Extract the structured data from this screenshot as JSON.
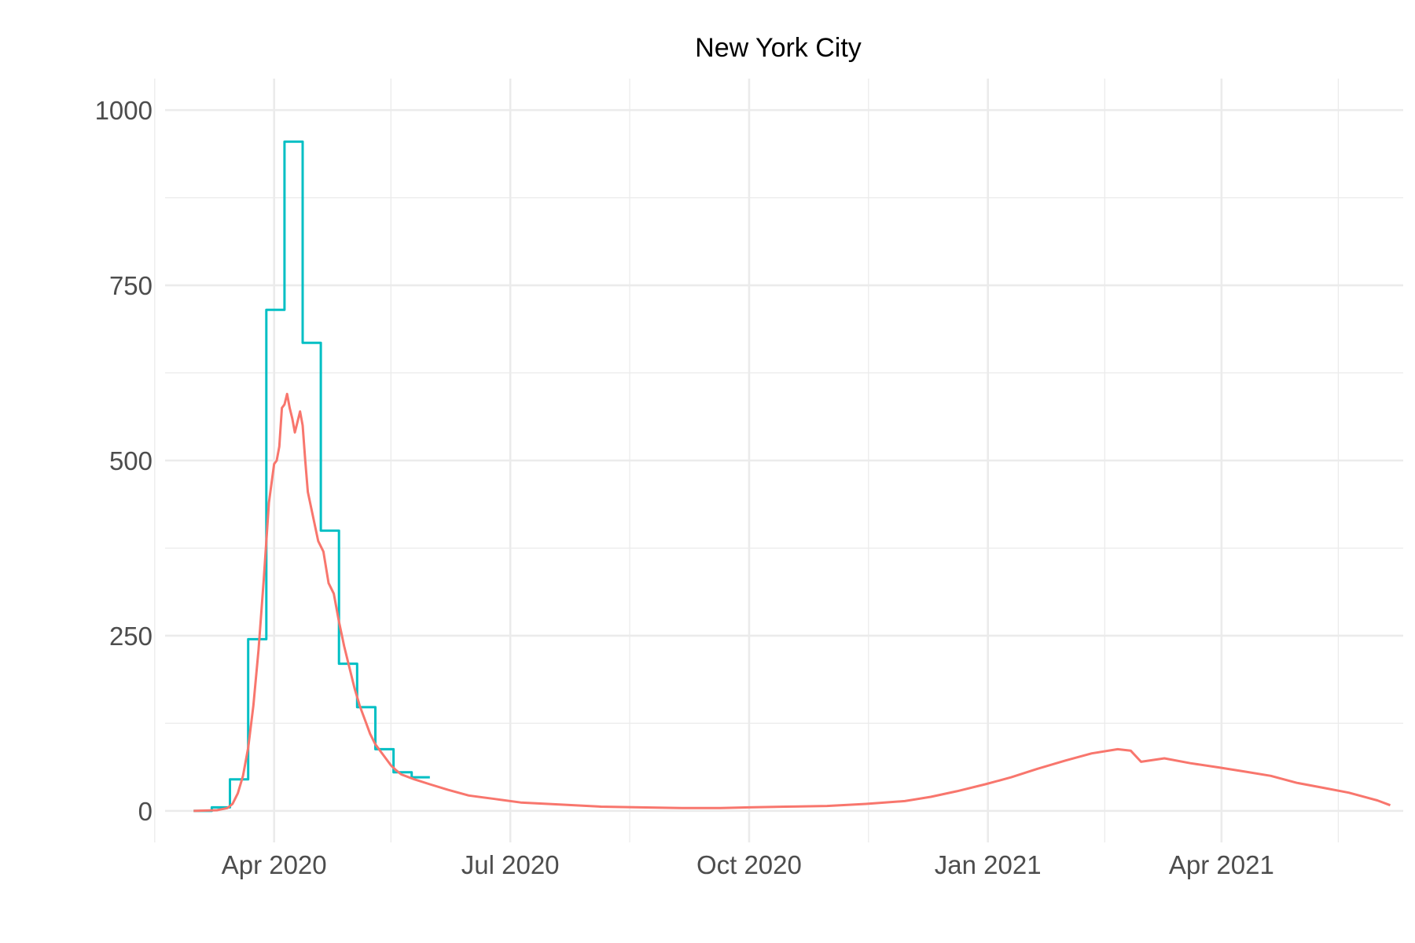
{
  "chart_data": {
    "type": "line",
    "title": "New York City",
    "xlabel": "",
    "ylabel": "",
    "x_range": [
      "2020-02-19",
      "2021-06-10"
    ],
    "ylim": [
      -45,
      1045
    ],
    "grid": true,
    "legend": "none",
    "x_ticks": [
      {
        "date": "2020-04-01",
        "label": "Apr 2020"
      },
      {
        "date": "2020-07-01",
        "label": "Jul 2020"
      },
      {
        "date": "2020-10-01",
        "label": "Oct 2020"
      },
      {
        "date": "2021-01-01",
        "label": "Jan 2021"
      },
      {
        "date": "2021-04-01",
        "label": "Apr 2021"
      }
    ],
    "x_minor_ticks": [
      "2020-02-15",
      "2020-05-16",
      "2020-08-16",
      "2020-11-16",
      "2021-02-15",
      "2021-05-16"
    ],
    "y_ticks": [
      {
        "value": 0,
        "label": "0"
      },
      {
        "value": 250,
        "label": "250"
      },
      {
        "value": 500,
        "label": "500"
      },
      {
        "value": 750,
        "label": "750"
      },
      {
        "value": 1000,
        "label": "1000"
      }
    ],
    "y_minor_ticks": [
      125,
      375,
      625,
      875
    ],
    "series": [
      {
        "color": "#00BFC4",
        "step": true,
        "points": [
          [
            "2020-03-01",
            0
          ],
          [
            "2020-03-08",
            5
          ],
          [
            "2020-03-15",
            45
          ],
          [
            "2020-03-22",
            245
          ],
          [
            "2020-03-29",
            715
          ],
          [
            "2020-04-05",
            955
          ],
          [
            "2020-04-12",
            668
          ],
          [
            "2020-04-19",
            400
          ],
          [
            "2020-04-26",
            210
          ],
          [
            "2020-05-03",
            148
          ],
          [
            "2020-05-10",
            88
          ],
          [
            "2020-05-17",
            55
          ],
          [
            "2020-05-24",
            48
          ]
        ]
      },
      {
        "color": "#F8766D",
        "step": false,
        "points": [
          [
            "2020-03-01",
            0
          ],
          [
            "2020-03-10",
            1
          ],
          [
            "2020-03-14",
            4
          ],
          [
            "2020-03-16",
            10
          ],
          [
            "2020-03-18",
            25
          ],
          [
            "2020-03-20",
            50
          ],
          [
            "2020-03-22",
            90
          ],
          [
            "2020-03-24",
            150
          ],
          [
            "2020-03-26",
            230
          ],
          [
            "2020-03-28",
            330
          ],
          [
            "2020-03-30",
            440
          ],
          [
            "2020-04-01",
            495
          ],
          [
            "2020-04-02",
            500
          ],
          [
            "2020-04-03",
            520
          ],
          [
            "2020-04-04",
            575
          ],
          [
            "2020-04-05",
            580
          ],
          [
            "2020-04-06",
            595
          ],
          [
            "2020-04-07",
            575
          ],
          [
            "2020-04-08",
            560
          ],
          [
            "2020-04-09",
            540
          ],
          [
            "2020-04-10",
            555
          ],
          [
            "2020-04-11",
            570
          ],
          [
            "2020-04-12",
            550
          ],
          [
            "2020-04-13",
            500
          ],
          [
            "2020-04-14",
            455
          ],
          [
            "2020-04-16",
            420
          ],
          [
            "2020-04-18",
            385
          ],
          [
            "2020-04-20",
            370
          ],
          [
            "2020-04-22",
            325
          ],
          [
            "2020-04-24",
            310
          ],
          [
            "2020-04-26",
            270
          ],
          [
            "2020-04-28",
            235
          ],
          [
            "2020-04-30",
            205
          ],
          [
            "2020-05-02",
            175
          ],
          [
            "2020-05-04",
            150
          ],
          [
            "2020-05-06",
            130
          ],
          [
            "2020-05-08",
            110
          ],
          [
            "2020-05-10",
            95
          ],
          [
            "2020-05-12",
            85
          ],
          [
            "2020-05-14",
            75
          ],
          [
            "2020-05-16",
            65
          ],
          [
            "2020-05-18",
            58
          ],
          [
            "2020-05-20",
            52
          ],
          [
            "2020-05-25",
            45
          ],
          [
            "2020-05-31",
            38
          ],
          [
            "2020-06-07",
            30
          ],
          [
            "2020-06-15",
            22
          ],
          [
            "2020-06-25",
            17
          ],
          [
            "2020-07-05",
            12
          ],
          [
            "2020-07-20",
            9
          ],
          [
            "2020-08-05",
            6
          ],
          [
            "2020-08-20",
            5
          ],
          [
            "2020-09-05",
            4
          ],
          [
            "2020-09-20",
            4
          ],
          [
            "2020-10-01",
            5
          ],
          [
            "2020-10-15",
            6
          ],
          [
            "2020-10-31",
            7
          ],
          [
            "2020-11-15",
            10
          ],
          [
            "2020-11-30",
            14
          ],
          [
            "2020-12-10",
            20
          ],
          [
            "2020-12-20",
            28
          ],
          [
            "2020-12-31",
            38
          ],
          [
            "2021-01-10",
            48
          ],
          [
            "2021-01-20",
            60
          ],
          [
            "2021-01-31",
            72
          ],
          [
            "2021-02-10",
            82
          ],
          [
            "2021-02-20",
            88
          ],
          [
            "2021-02-25",
            86
          ],
          [
            "2021-03-01",
            70
          ],
          [
            "2021-03-10",
            75
          ],
          [
            "2021-03-20",
            68
          ],
          [
            "2021-03-31",
            62
          ],
          [
            "2021-04-10",
            56
          ],
          [
            "2021-04-20",
            50
          ],
          [
            "2021-04-30",
            40
          ],
          [
            "2021-05-10",
            33
          ],
          [
            "2021-05-20",
            26
          ],
          [
            "2021-05-31",
            15
          ],
          [
            "2021-06-05",
            8
          ]
        ]
      }
    ]
  }
}
